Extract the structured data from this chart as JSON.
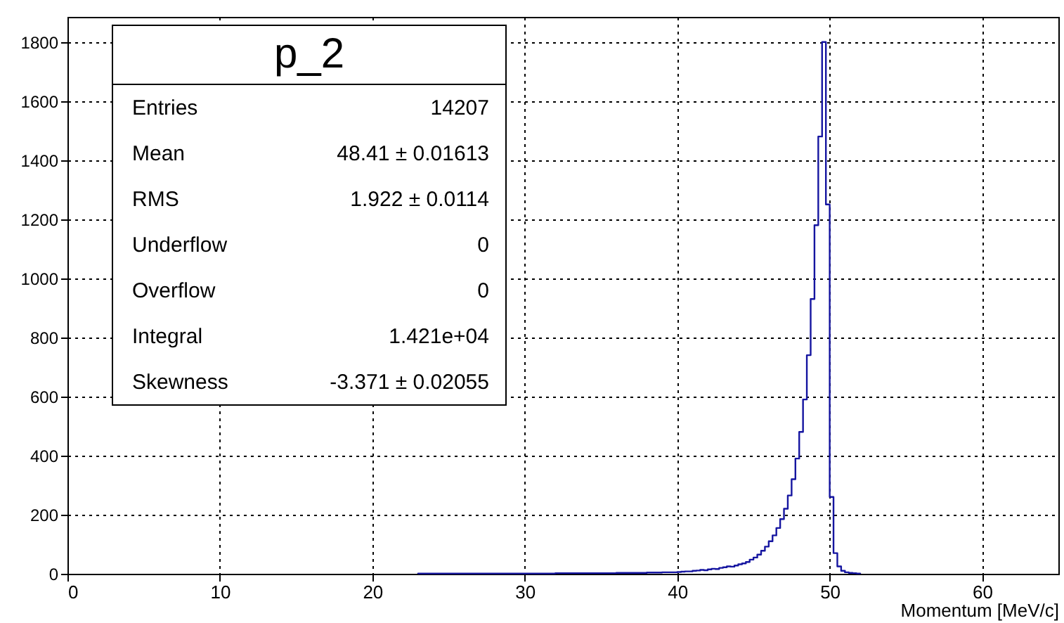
{
  "chart_data": {
    "type": "histogram",
    "title": "p_2",
    "xlabel": "Momentum [MeV/c]",
    "bins": [
      23,
      24,
      25,
      26,
      27,
      28,
      29,
      30,
      31,
      32,
      33,
      34,
      35,
      36,
      37,
      38,
      39,
      40,
      40.25,
      40.5,
      40.75,
      41,
      41.25,
      41.5,
      41.75,
      42,
      42.25,
      42.5,
      42.75,
      43,
      43.25,
      43.5,
      43.75,
      44,
      44.25,
      44.5,
      44.75,
      45,
      45.25,
      45.5,
      45.75,
      46,
      46.25,
      46.5,
      46.75,
      47,
      47.25,
      47.5,
      47.75,
      48,
      48.25,
      48.5,
      48.75,
      49,
      49.25,
      49.5,
      49.75,
      50,
      50.25,
      50.5,
      50.75,
      51,
      51.25,
      51.5,
      51.75,
      52
    ],
    "values": [
      1,
      1,
      1,
      1,
      1,
      1,
      1,
      1,
      1,
      2,
      2,
      2,
      2,
      3,
      3,
      4,
      5,
      6,
      7,
      8,
      8,
      10,
      11,
      13,
      12,
      15,
      17,
      16,
      20,
      22,
      25,
      24,
      28,
      32,
      35,
      40,
      48,
      55,
      65,
      78,
      92,
      110,
      130,
      155,
      185,
      220,
      265,
      320,
      390,
      480,
      590,
      740,
      930,
      1180,
      1480,
      1800,
      1250,
      260,
      70,
      25,
      10,
      5,
      3,
      2,
      1
    ],
    "color": "#1515a0",
    "xlim": [
      0,
      65
    ],
    "xticks": [
      0,
      10,
      20,
      30,
      40,
      50,
      60
    ],
    "ylim": [
      0,
      1885
    ],
    "yticks": [
      0,
      200,
      400,
      600,
      800,
      1000,
      1200,
      1400,
      1600,
      1800
    ],
    "grid": true,
    "annotations": [
      "Entries",
      "14207",
      "Mean",
      "48.41 ± 0.01613",
      "RMS",
      "1.922 ± 0.0114",
      "Underflow",
      "0",
      "Overflow",
      "0",
      "Integral",
      "1.421e+04",
      "Skewness",
      "-3.371 ± 0.02055"
    ]
  }
}
